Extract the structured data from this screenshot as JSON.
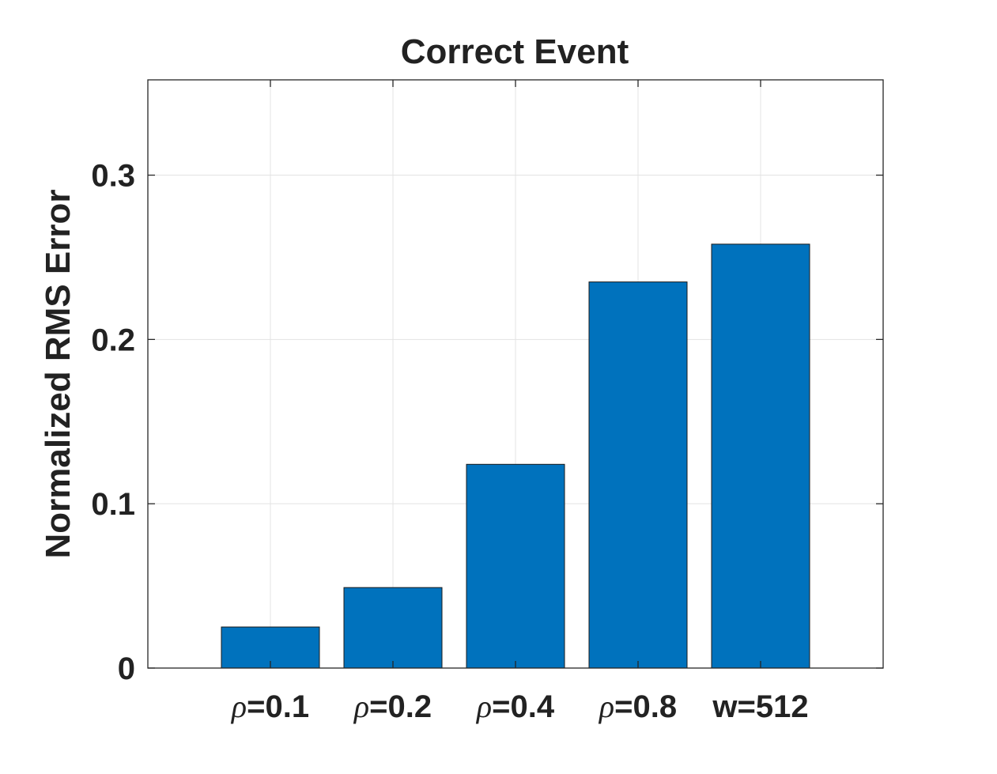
{
  "chart_data": {
    "type": "bar",
    "title": "Correct Event",
    "xlabel": "",
    "ylabel": "Normalized RMS Error",
    "categories": [
      {
        "symbol": "ρ",
        "text": "=0.1"
      },
      {
        "symbol": "ρ",
        "text": "=0.2"
      },
      {
        "symbol": "ρ",
        "text": "=0.4"
      },
      {
        "symbol": "ρ",
        "text": "=0.8"
      },
      {
        "symbol": "",
        "text": "w=512"
      }
    ],
    "values": [
      0.025,
      0.049,
      0.124,
      0.235,
      0.258
    ],
    "ylim": [
      0,
      0.358
    ],
    "xlim": [
      0,
      6
    ],
    "yticks": [
      0,
      0.1,
      0.2,
      0.3
    ],
    "ytick_labels": [
      "0",
      "0.1",
      "0.2",
      "0.3"
    ],
    "grid": true,
    "bar_color": "#0072BD",
    "legend": "none"
  }
}
